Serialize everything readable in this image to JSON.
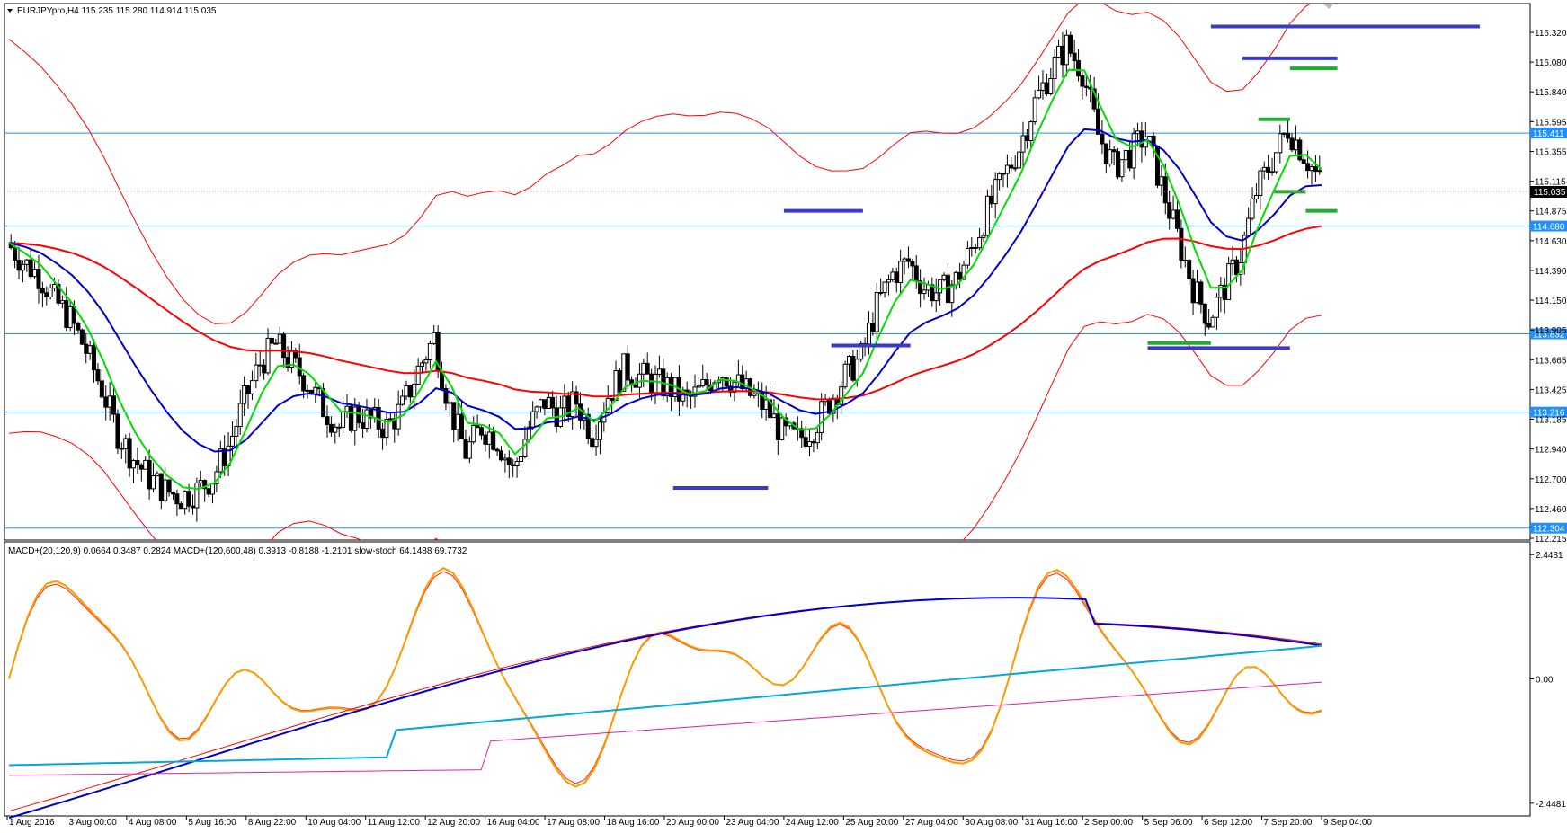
{
  "header": {
    "main": "EURJPYpro,H4  115.235 115.280 114.914 115.035",
    "indicator": "MACD+(20,120,9) 0.0664 0.3487 0.2824  MACD+(120,600,48) 0.3913 -0.8188 -1.2101  slow-stoch 64.1488 69.7732"
  },
  "colors": {
    "grid": "#000000",
    "hline": "#1e90ff",
    "ma_green": "#00dd00",
    "ma_blue": "#0000cc",
    "ma_red": "#ff0000",
    "envelope": "#ff0000",
    "level_blue": "#3a3ac8",
    "level_green": "#22aa33",
    "stoch_orange": "#ff9900",
    "stoch_red": "#ff2200",
    "cyan": "#00a8e0",
    "magenta": "#e020a0"
  },
  "chart_data": [
    {
      "type": "candlestick",
      "symbol": "EURJPYpro",
      "timeframe": "H4",
      "current_price": "115.035",
      "y_range": [
        112.21,
        116.43
      ],
      "y_ticks": [
        "116.320",
        "116.080",
        "115.840",
        "115.595",
        "115.355",
        "115.115",
        "114.875",
        "114.630",
        "114.390",
        "114.150",
        "113.905",
        "113.665",
        "113.425",
        "113.185",
        "112.940",
        "112.700",
        "112.460",
        "112.215"
      ],
      "x_ticks": [
        "1 Aug 2016",
        "3 Aug 00:00",
        "4 Aug 08:00",
        "5 Aug 16:00",
        "8 Aug 22:00",
        "10 Aug 04:00",
        "11 Aug 12:00",
        "12 Aug 20:00",
        "16 Aug 04:00",
        "17 Aug 08:00",
        "18 Aug 16:00",
        "20 Aug 00:00",
        "23 Aug 04:00",
        "24 Aug 12:00",
        "25 Aug 20:00",
        "27 Aug 04:00",
        "30 Aug 08:00",
        "31 Aug 16:00",
        "2 Sep 00:00",
        "5 Sep 06:00",
        "6 Sep 12:00",
        "7 Sep 20:00",
        "9 Sep 04:00"
      ],
      "horizontal_lines": [
        {
          "price": 115.411,
          "label": "115.411"
        },
        {
          "price": 114.68,
          "label": "114.680"
        },
        {
          "price": 113.832,
          "label": "113.832"
        },
        {
          "price": 113.216,
          "label": "113.216"
        },
        {
          "price": 112.304,
          "label": "112.304"
        }
      ],
      "close_series": [
        114.55,
        114.4,
        114.3,
        114.1,
        113.95,
        113.7,
        113.4,
        113.05,
        112.85,
        112.7,
        112.6,
        112.55,
        112.6,
        112.7,
        112.95,
        113.3,
        113.6,
        113.75,
        113.6,
        113.45,
        113.25,
        113.1,
        113.2,
        113.15,
        113.1,
        113.25,
        113.55,
        113.8,
        113.25,
        112.9,
        113.1,
        113.0,
        112.75,
        113.1,
        113.3,
        113.2,
        113.3,
        113.05,
        113.35,
        113.55,
        113.5,
        113.45,
        113.4,
        113.3,
        113.4,
        113.55,
        113.45,
        113.35,
        113.25,
        113.05,
        113.0,
        113.1,
        113.3,
        113.5,
        113.65,
        114.05,
        114.3,
        114.4,
        114.2,
        114.15,
        114.25,
        114.5,
        114.8,
        115.05,
        115.3,
        115.65,
        115.9,
        116.1,
        115.9,
        115.4,
        115.15,
        115.25,
        115.4,
        115.0,
        114.6,
        114.2,
        113.95,
        114.2,
        114.45,
        114.95,
        115.2,
        115.45,
        115.25,
        115.035
      ],
      "levels_blue": [
        {
          "from_index": 76,
          "to_index": 93,
          "price": 116.25
        },
        {
          "from_index": 49,
          "to_index": 54,
          "price": 114.8
        },
        {
          "from_index": 52,
          "to_index": 57,
          "price": 113.74
        },
        {
          "from_index": 42,
          "to_index": 48,
          "price": 112.62
        },
        {
          "from_index": 72,
          "to_index": 81,
          "price": 113.72
        },
        {
          "from_index": 78,
          "to_index": 84,
          "price": 116.0
        }
      ],
      "levels_green": [
        {
          "from_index": 72,
          "to_index": 76,
          "price": 113.76
        },
        {
          "from_index": 79,
          "to_index": 81,
          "price": 115.52
        },
        {
          "from_index": 80,
          "to_index": 82,
          "price": 114.95
        },
        {
          "from_index": 81,
          "to_index": 84,
          "price": 115.92
        },
        {
          "from_index": 82,
          "to_index": 84,
          "price": 114.8
        }
      ]
    },
    {
      "type": "line",
      "panel": "indicator",
      "y_ticks": [
        "2.4481",
        "0.00",
        "-2.4481"
      ],
      "y_range": [
        -2.7,
        2.7
      ],
      "series_names": [
        "MACD+(20,120,9)",
        "MACD+(120,600,48)",
        "slow-stoch"
      ]
    }
  ]
}
